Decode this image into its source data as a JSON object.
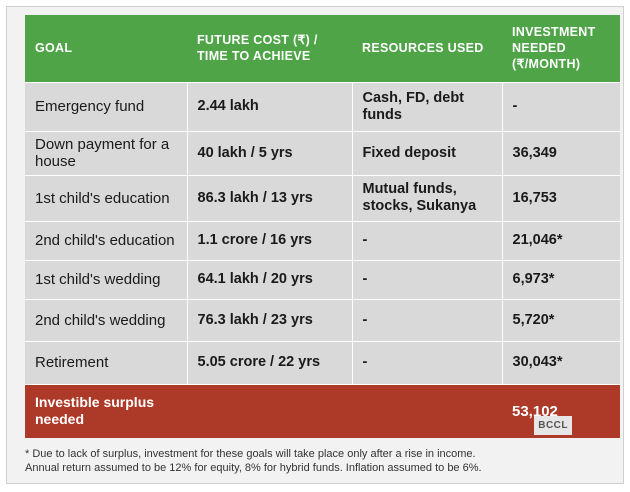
{
  "headers": {
    "goal": "GOAL",
    "future_cost": "FUTURE COST (₹) / TIME TO ACHIEVE",
    "resources": "RESOURCES USED",
    "investment": "INVESTMENT NEEDED (₹/MONTH)"
  },
  "rows": [
    {
      "goal": "Emergency fund",
      "cost": "2.44 lakh",
      "resources": "Cash, FD, debt funds",
      "investment": "-"
    },
    {
      "goal": "Down payment for a house",
      "cost": "40 lakh / 5 yrs",
      "resources": "Fixed deposit",
      "investment": "36,349"
    },
    {
      "goal": "1st child's education",
      "cost": "86.3 lakh / 13 yrs",
      "resources": "Mutual funds, stocks, Sukanya",
      "investment": "16,753"
    },
    {
      "goal": "2nd child's education",
      "cost": "1.1 crore / 16 yrs",
      "resources": "-",
      "investment": "21,046*"
    },
    {
      "goal": "1st child's wedding",
      "cost": "64.1 lakh / 20 yrs",
      "resources": "-",
      "investment": "6,973*"
    },
    {
      "goal": "2nd child's wedding",
      "cost": "76.3 lakh / 23 yrs",
      "resources": "-",
      "investment": "5,720*"
    },
    {
      "goal": "Retirement",
      "cost": "5.05 crore / 22 yrs",
      "resources": "-",
      "investment": "30,043*"
    }
  ],
  "total": {
    "label": "Investible surplus needed",
    "value": "53,102"
  },
  "watermark": "BCCL",
  "footnotes": [
    "* Due to lack of surplus, investment for these goals will take place only after a rise in income.",
    "Annual return assumed to be 12% for equity, 8% for hybrid funds. Inflation assumed to be 6%."
  ],
  "colors": {
    "header_green": "#4ea447",
    "total_red": "#ad3a29",
    "row_gray": "#d9d9d9"
  }
}
